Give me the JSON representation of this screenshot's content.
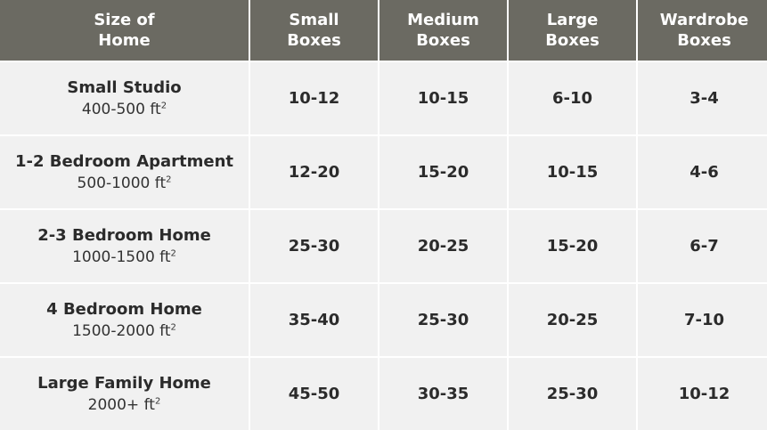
{
  "colors": {
    "header_background": "#6b6a62",
    "header_text": "#ffffff",
    "cell_background": "#f1f1f1",
    "cell_text": "#2b2b2b"
  },
  "table": {
    "headers": [
      "Size of\nHome",
      "Small\nBoxes",
      "Medium\nBoxes",
      "Large\nBoxes",
      "Wardrobe\nBoxes"
    ],
    "area_unit": "ft",
    "area_exponent": "2",
    "rows": [
      {
        "home": "Small Studio",
        "area": "400-500",
        "small": "10-12",
        "medium": "10-15",
        "large": "6-10",
        "wardrobe": "3-4"
      },
      {
        "home": "1-2 Bedroom Apartment",
        "area": "500-1000",
        "small": "12-20",
        "medium": "15-20",
        "large": "10-15",
        "wardrobe": "4-6"
      },
      {
        "home": "2-3 Bedroom Home",
        "area": "1000-1500",
        "small": "25-30",
        "medium": "20-25",
        "large": "15-20",
        "wardrobe": "6-7"
      },
      {
        "home": "4 Bedroom Home",
        "area": "1500-2000",
        "small": "35-40",
        "medium": "25-30",
        "large": "20-25",
        "wardrobe": "7-10"
      },
      {
        "home": "Large Family Home",
        "area": "2000+",
        "small": "45-50",
        "medium": "30-35",
        "large": "25-30",
        "wardrobe": "10-12"
      }
    ]
  }
}
